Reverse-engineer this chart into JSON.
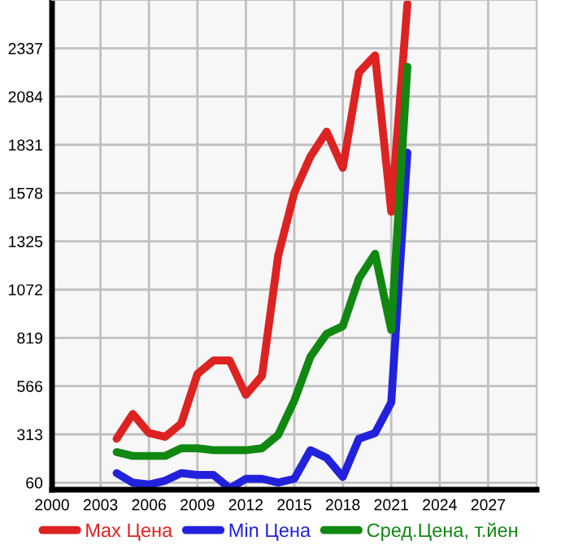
{
  "chart_data": {
    "type": "line",
    "x": [
      2004,
      2005,
      2006,
      2007,
      2008,
      2009,
      2010,
      2011,
      2012,
      2013,
      2014,
      2015,
      2016,
      2017,
      2018,
      2019,
      2020,
      2021,
      2022
    ],
    "series": [
      {
        "name": "Max Цена",
        "color": "#dd2222",
        "values": [
          290,
          420,
          320,
          300,
          370,
          630,
          700,
          700,
          520,
          620,
          1250,
          1580,
          1770,
          1900,
          1710,
          2210,
          2300,
          1480,
          2570
        ]
      },
      {
        "name": "Min Цена",
        "color": "#2222dd",
        "values": [
          110,
          60,
          50,
          70,
          110,
          100,
          100,
          30,
          80,
          80,
          60,
          80,
          230,
          190,
          90,
          290,
          320,
          480,
          1790
        ]
      },
      {
        "name": "Сред.Цена, т.йен",
        "color": "#118811",
        "values": [
          220,
          200,
          200,
          200,
          240,
          240,
          230,
          230,
          230,
          240,
          310,
          490,
          720,
          840,
          880,
          1130,
          1260,
          860,
          2240
        ]
      }
    ],
    "xlim": [
      2000,
      2030
    ],
    "xticks": [
      2000,
      2003,
      2006,
      2009,
      2012,
      2015,
      2018,
      2021,
      2024,
      2027
    ],
    "ylim": [
      23,
      2590
    ],
    "yticks": [
      60,
      313,
      566,
      819,
      1072,
      1325,
      1578,
      1831,
      2084,
      2337
    ],
    "grid": true,
    "legend": "bottom",
    "marker": "none",
    "line_style": "solid"
  }
}
